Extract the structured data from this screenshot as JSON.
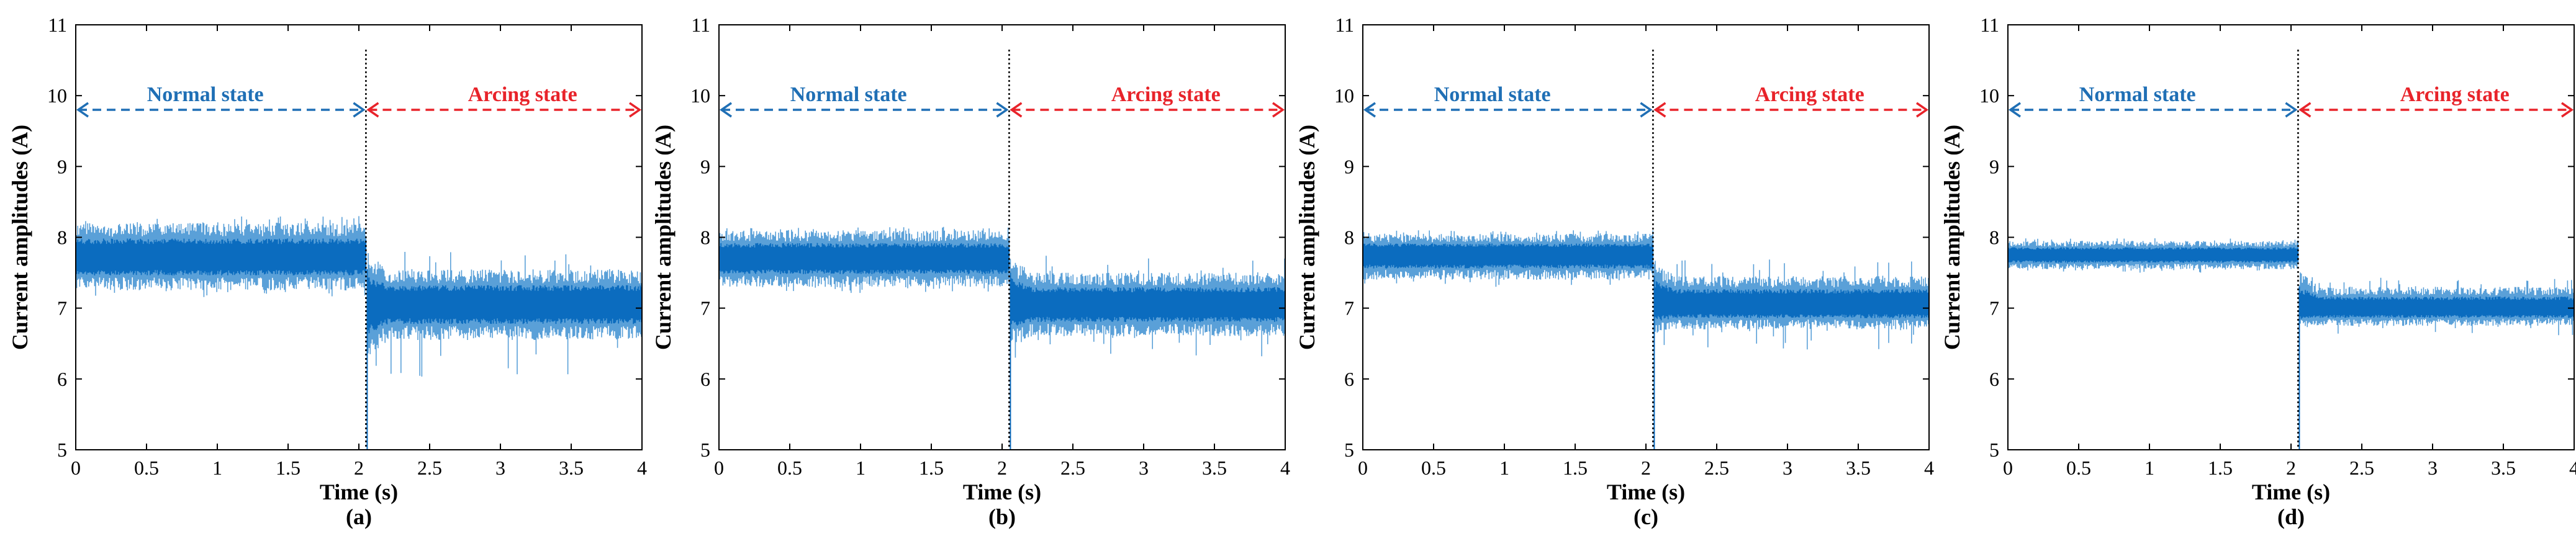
{
  "chart_data": [
    {
      "panel_label": "(a)",
      "type": "line",
      "xlabel": "Time (s)",
      "ylabel": "Current amplitudes (A)",
      "xlim": [
        0,
        4
      ],
      "ylim": [
        5,
        11
      ],
      "xticks": [
        0,
        0.5,
        1,
        1.5,
        2,
        2.5,
        3,
        3.5,
        4
      ],
      "yticks": [
        5,
        6,
        7,
        8,
        9,
        10,
        11
      ],
      "transition_time": 2.05,
      "annotations": [
        {
          "text": "Normal state",
          "color": "#1f6fb5",
          "x_range": [
            0,
            2.05
          ],
          "y": 9.8
        },
        {
          "text": "Arcing state",
          "color": "#e8232a",
          "x_range": [
            2.05,
            4
          ],
          "y": 9.8
        }
      ],
      "series": [
        {
          "segment": "normal",
          "x_range": [
            0,
            2.05
          ],
          "mean": 7.72,
          "band": [
            7.25,
            8.2
          ],
          "spikes": [
            7.15,
            8.3
          ]
        },
        {
          "segment": "arcing",
          "x_range": [
            2.05,
            4
          ],
          "mean": 7.05,
          "band": [
            6.55,
            7.55
          ],
          "spikes": [
            6.0,
            7.8
          ],
          "transient_min": 6.2
        }
      ],
      "color": "#0b6cbf"
    },
    {
      "panel_label": "(b)",
      "type": "line",
      "xlabel": "Time (s)",
      "ylabel": "Current amplitudes (A)",
      "xlim": [
        0,
        4
      ],
      "ylim": [
        5,
        11
      ],
      "xticks": [
        0,
        0.5,
        1,
        1.5,
        2,
        2.5,
        3,
        3.5,
        4
      ],
      "yticks": [
        5,
        6,
        7,
        8,
        9,
        10,
        11
      ],
      "transition_time": 2.05,
      "annotations": [
        {
          "text": "Normal state",
          "color": "#1f6fb5",
          "x_range": [
            0,
            2.05
          ],
          "y": 9.8
        },
        {
          "text": "Arcing state",
          "color": "#e8232a",
          "x_range": [
            2.05,
            4
          ],
          "y": 9.8
        }
      ],
      "series": [
        {
          "segment": "normal",
          "x_range": [
            0,
            2.05
          ],
          "mean": 7.7,
          "band": [
            7.3,
            8.1
          ],
          "spikes": [
            7.2,
            8.15
          ]
        },
        {
          "segment": "arcing",
          "x_range": [
            2.05,
            4
          ],
          "mean": 7.05,
          "band": [
            6.6,
            7.5
          ],
          "spikes": [
            6.3,
            7.75
          ],
          "transient_min": 6.4
        }
      ],
      "color": "#0b6cbf"
    },
    {
      "panel_label": "(c)",
      "type": "line",
      "xlabel": "Time (s)",
      "ylabel": "Current amplitudes (A)",
      "xlim": [
        0,
        4
      ],
      "ylim": [
        5,
        11
      ],
      "xticks": [
        0,
        0.5,
        1,
        1.5,
        2,
        2.5,
        3,
        3.5,
        4
      ],
      "yticks": [
        5,
        6,
        7,
        8,
        9,
        10,
        11
      ],
      "transition_time": 2.05,
      "annotations": [
        {
          "text": "Normal state",
          "color": "#1f6fb5",
          "x_range": [
            0,
            2.05
          ],
          "y": 9.8
        },
        {
          "text": "Arcing state",
          "color": "#e8232a",
          "x_range": [
            2.05,
            4
          ],
          "y": 9.8
        }
      ],
      "series": [
        {
          "segment": "normal",
          "x_range": [
            0,
            2.05
          ],
          "mean": 7.75,
          "band": [
            7.4,
            8.05
          ],
          "spikes": [
            7.3,
            8.1
          ]
        },
        {
          "segment": "arcing",
          "x_range": [
            2.05,
            4
          ],
          "mean": 7.05,
          "band": [
            6.7,
            7.45
          ],
          "spikes": [
            6.4,
            7.7
          ],
          "transient_min": 6.6
        }
      ],
      "color": "#0b6cbf"
    },
    {
      "panel_label": "(d)",
      "type": "line",
      "xlabel": "Time (s)",
      "ylabel": "Current amplitudes (A)",
      "xlim": [
        0,
        4
      ],
      "ylim": [
        5,
        11
      ],
      "xticks": [
        0,
        0.5,
        1,
        1.5,
        2,
        2.5,
        3,
        3.5,
        4
      ],
      "yticks": [
        5,
        6,
        7,
        8,
        9,
        10,
        11
      ],
      "transition_time": 2.05,
      "annotations": [
        {
          "text": "Normal state",
          "color": "#1f6fb5",
          "x_range": [
            0,
            2.05
          ],
          "y": 9.8
        },
        {
          "text": "Arcing state",
          "color": "#e8232a",
          "x_range": [
            2.05,
            4
          ],
          "y": 9.8
        }
      ],
      "series": [
        {
          "segment": "normal",
          "x_range": [
            0,
            2.05
          ],
          "mean": 7.75,
          "band": [
            7.55,
            7.95
          ],
          "spikes": [
            7.5,
            8.0
          ]
        },
        {
          "segment": "arcing",
          "x_range": [
            2.05,
            4
          ],
          "mean": 7.0,
          "band": [
            6.75,
            7.3
          ],
          "spikes": [
            6.55,
            7.45
          ],
          "transient_min": 6.7
        }
      ],
      "color": "#0b6cbf"
    }
  ]
}
